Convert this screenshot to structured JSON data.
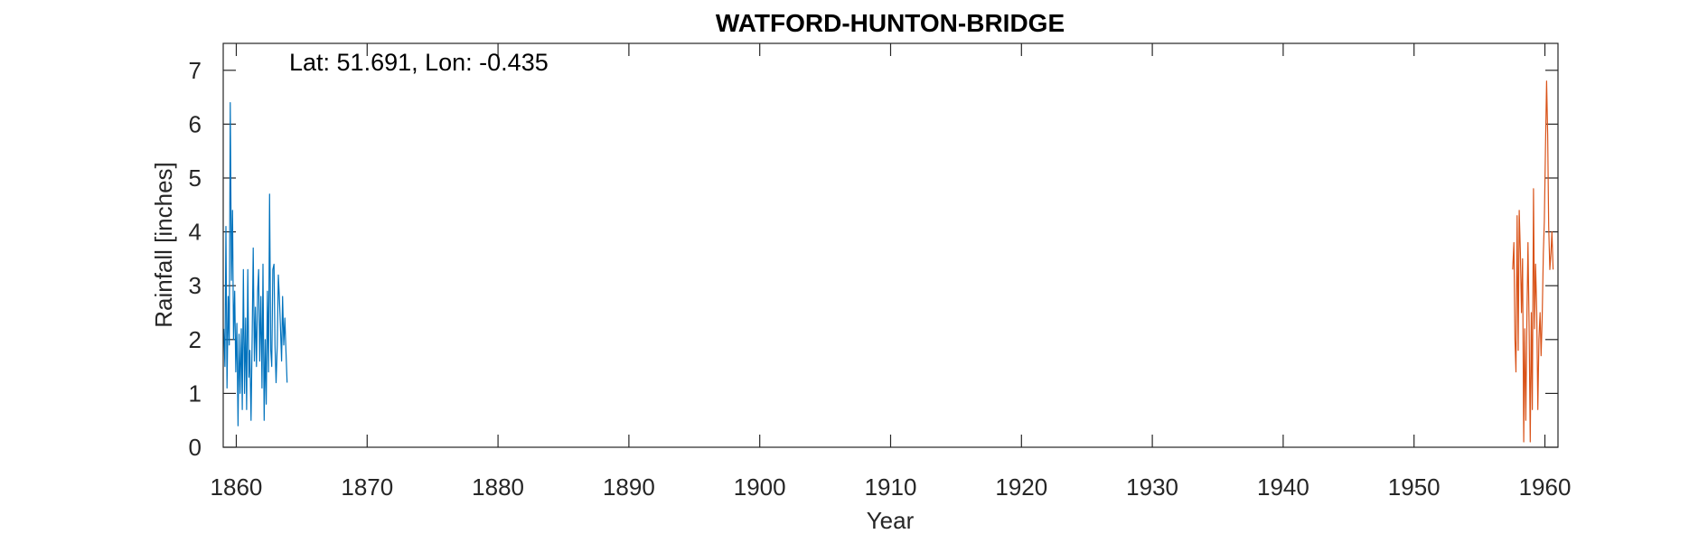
{
  "chart_data": {
    "type": "line",
    "title": "WATFORD-HUNTON-BRIDGE",
    "xlabel": "Year",
    "ylabel": "Rainfall [inches]",
    "annotation": "Lat: 51.691, Lon: -0.435",
    "xlim": [
      1859,
      1961
    ],
    "ylim": [
      0,
      7.5
    ],
    "xticks": [
      1860,
      1870,
      1880,
      1890,
      1900,
      1910,
      1920,
      1930,
      1940,
      1950,
      1960
    ],
    "yticks": [
      0,
      1,
      2,
      3,
      4,
      5,
      6,
      7
    ],
    "grid": false,
    "legend": "none",
    "series": [
      {
        "color": "#0072BD",
        "x": [
          1859.04,
          1859.13,
          1859.21,
          1859.29,
          1859.38,
          1859.46,
          1859.54,
          1859.63,
          1859.71,
          1859.79,
          1859.88,
          1859.96,
          1860.04,
          1860.13,
          1860.21,
          1860.29,
          1860.38,
          1860.46,
          1860.54,
          1860.63,
          1860.71,
          1860.79,
          1860.88,
          1860.96,
          1861.04,
          1861.13,
          1861.21,
          1861.29,
          1861.38,
          1861.46,
          1861.54,
          1861.63,
          1861.71,
          1861.79,
          1861.88,
          1861.96,
          1862.04,
          1862.13,
          1862.21,
          1862.29,
          1862.38,
          1862.46,
          1862.54,
          1862.63,
          1862.71,
          1862.79,
          1862.88,
          1862.96,
          1863.04,
          1863.13,
          1863.21,
          1863.29,
          1863.38,
          1863.46,
          1863.54,
          1863.63,
          1863.71,
          1863.79,
          1863.88
        ],
        "values": [
          2.2,
          1.5,
          4.1,
          1.1,
          2.8,
          1.9,
          6.4,
          3.1,
          4.4,
          2.0,
          2.9,
          1.4,
          2.3,
          0.4,
          2.1,
          1.0,
          2.2,
          0.7,
          3.3,
          1.0,
          2.4,
          0.7,
          3.3,
          1.3,
          1.8,
          0.5,
          2.0,
          3.7,
          1.6,
          2.6,
          1.5,
          2.9,
          3.3,
          1.6,
          2.8,
          1.1,
          3.4,
          0.5,
          2.0,
          0.8,
          2.9,
          1.4,
          4.7,
          1.8,
          1.5,
          3.3,
          3.4,
          1.9,
          1.2,
          1.9,
          3.2,
          2.8,
          2.2,
          1.6,
          2.8,
          1.9,
          2.4,
          1.8,
          1.2
        ]
      },
      {
        "color": "#D95319",
        "x": [
          1957.54,
          1957.63,
          1957.71,
          1957.79,
          1957.88,
          1957.96,
          1958.04,
          1958.13,
          1958.21,
          1958.29,
          1958.38,
          1958.46,
          1958.54,
          1958.63,
          1958.71,
          1958.79,
          1958.88,
          1958.96,
          1959.04,
          1959.13,
          1959.21,
          1959.29,
          1959.38,
          1959.46,
          1959.54,
          1959.63,
          1959.71,
          1959.79,
          1959.88,
          1959.96,
          1960.04,
          1960.13,
          1960.21,
          1960.29,
          1960.38,
          1960.46,
          1960.54,
          1960.63
        ],
        "values": [
          3.3,
          3.8,
          2.0,
          1.4,
          4.3,
          1.8,
          4.4,
          3.6,
          2.5,
          3.5,
          0.1,
          2.2,
          0.5,
          2.5,
          3.8,
          2.3,
          0.1,
          2.5,
          0.7,
          4.8,
          2.2,
          3.4,
          2.5,
          0.7,
          2.0,
          2.5,
          1.7,
          2.4,
          3.6,
          4.2,
          5.5,
          6.8,
          5.8,
          4.1,
          3.3,
          3.6,
          4.0,
          3.3
        ]
      }
    ]
  }
}
